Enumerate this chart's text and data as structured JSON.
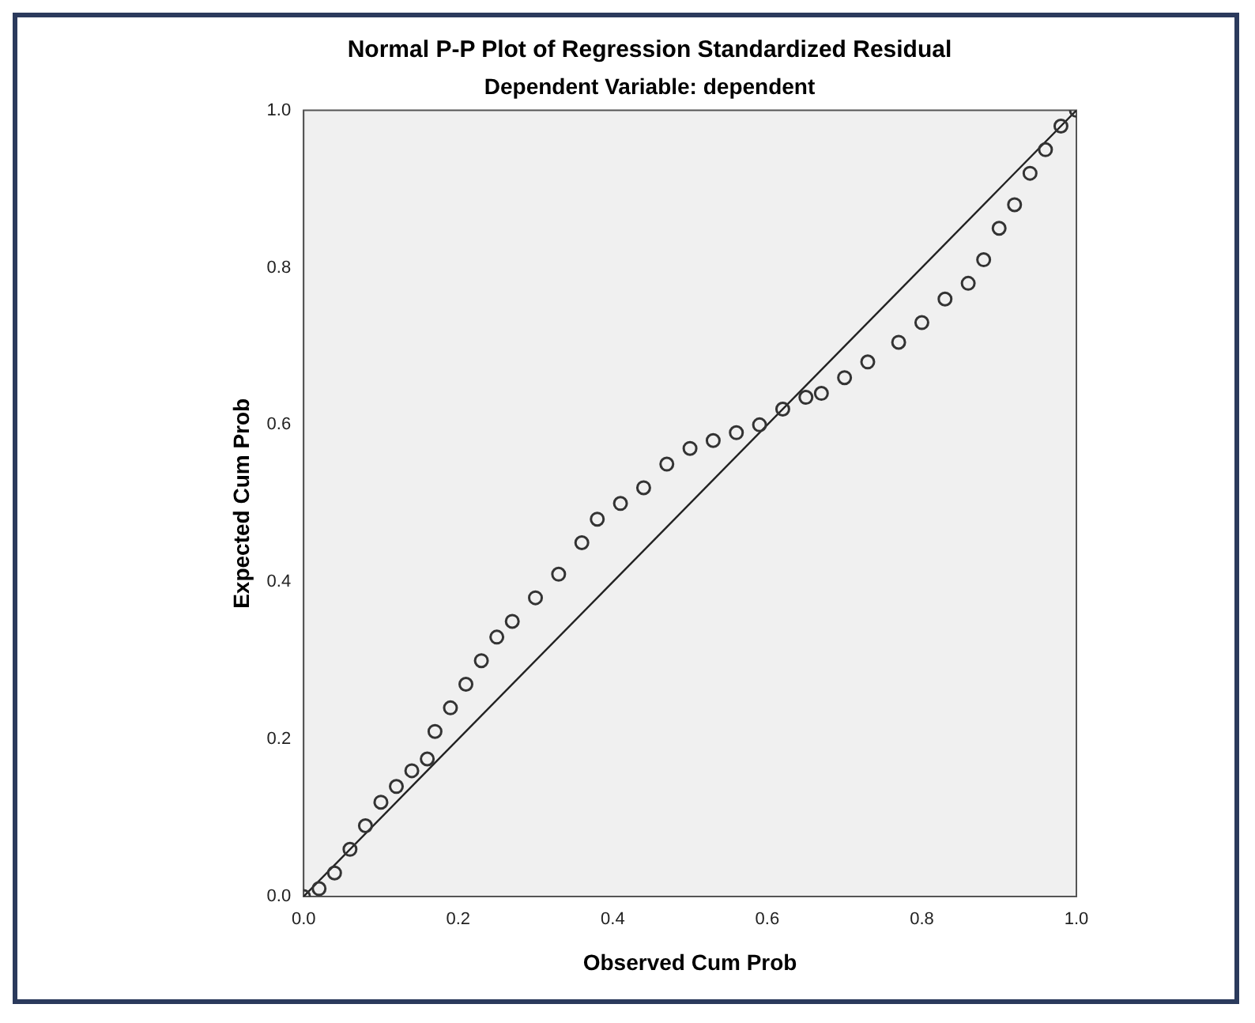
{
  "chart_data": {
    "type": "scatter",
    "title": "Normal P-P Plot of Regression Standardized Residual",
    "subtitle": "Dependent Variable: dependent",
    "xlabel": "Observed Cum Prob",
    "ylabel": "Expected Cum Prob",
    "xlim": [
      0,
      1
    ],
    "ylim": [
      0,
      1
    ],
    "xticks": [
      {
        "value": 0,
        "label": "0.0"
      },
      {
        "value": 0.2,
        "label": "0.2"
      },
      {
        "value": 0.4,
        "label": "0.4"
      },
      {
        "value": 0.6,
        "label": "0.6"
      },
      {
        "value": 0.8,
        "label": "0.8"
      },
      {
        "value": 1,
        "label": "1.0"
      }
    ],
    "yticks": [
      {
        "value": 0,
        "label": "0.0"
      },
      {
        "value": 0.2,
        "label": "0.2"
      },
      {
        "value": 0.4,
        "label": "0.4"
      },
      {
        "value": 0.6,
        "label": "0.6"
      },
      {
        "value": 0.8,
        "label": "0.8"
      },
      {
        "value": 1,
        "label": "1.0"
      }
    ],
    "grid": false,
    "legend": false,
    "marker": "circle",
    "series": [
      {
        "type": "scatter",
        "color": "#333333",
        "x": [
          0.0,
          0.02,
          0.04,
          0.06,
          0.08,
          0.1,
          0.12,
          0.14,
          0.16,
          0.17,
          0.19,
          0.21,
          0.23,
          0.25,
          0.27,
          0.3,
          0.33,
          0.36,
          0.38,
          0.41,
          0.44,
          0.47,
          0.5,
          0.53,
          0.56,
          0.59,
          0.62,
          0.65,
          0.67,
          0.7,
          0.73,
          0.77,
          0.8,
          0.83,
          0.86,
          0.88,
          0.9,
          0.92,
          0.94,
          0.96,
          0.98,
          1.0
        ],
        "values": [
          0.0,
          0.01,
          0.03,
          0.06,
          0.09,
          0.12,
          0.14,
          0.16,
          0.175,
          0.21,
          0.24,
          0.27,
          0.3,
          0.33,
          0.35,
          0.38,
          0.41,
          0.45,
          0.48,
          0.5,
          0.52,
          0.55,
          0.57,
          0.58,
          0.59,
          0.6,
          0.62,
          0.635,
          0.64,
          0.66,
          0.68,
          0.705,
          0.73,
          0.76,
          0.78,
          0.81,
          0.85,
          0.88,
          0.92,
          0.95,
          0.98,
          1.0
        ]
      },
      {
        "type": "line",
        "color": "#222222",
        "marker": "none",
        "x": [
          0,
          1
        ],
        "values": [
          0,
          1
        ]
      }
    ]
  }
}
